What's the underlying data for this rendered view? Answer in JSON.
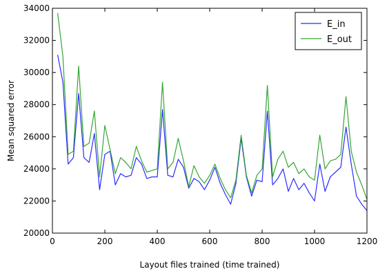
{
  "chart_data": {
    "type": "line",
    "title": "",
    "xlabel": "Layout files trained (time trained)",
    "ylabel": "Mean squared error",
    "xlim": [
      0,
      1200
    ],
    "ylim": [
      20000,
      34000
    ],
    "xticks": [
      0,
      200,
      400,
      600,
      800,
      1000,
      1200
    ],
    "yticks": [
      20000,
      22000,
      24000,
      26000,
      28000,
      30000,
      32000,
      34000
    ],
    "grid": false,
    "legend_position": "top-right",
    "x": [
      20,
      40,
      60,
      80,
      100,
      120,
      140,
      160,
      180,
      200,
      220,
      240,
      260,
      280,
      300,
      320,
      340,
      360,
      380,
      400,
      420,
      440,
      460,
      480,
      500,
      520,
      540,
      560,
      580,
      600,
      620,
      640,
      660,
      680,
      700,
      720,
      740,
      760,
      780,
      800,
      820,
      840,
      860,
      880,
      900,
      920,
      940,
      960,
      980,
      1000,
      1020,
      1040,
      1060,
      1080,
      1100,
      1120,
      1140,
      1160,
      1180,
      1200
    ],
    "series": [
      {
        "name": "E_in",
        "color": "#2a2aff",
        "values": [
          31100,
          29400,
          24300,
          24700,
          28700,
          24700,
          24400,
          26200,
          22700,
          24900,
          25100,
          23000,
          23700,
          23500,
          23600,
          24700,
          24300,
          23400,
          23500,
          23500,
          27700,
          23600,
          23500,
          24600,
          24100,
          22800,
          23400,
          23200,
          22700,
          23300,
          24100,
          23100,
          22400,
          21800,
          23100,
          25900,
          23500,
          22300,
          23300,
          23200,
          27600,
          23000,
          23400,
          24000,
          22600,
          23400,
          22700,
          23100,
          22500,
          22000,
          24300,
          22600,
          23500,
          23800,
          24100,
          26600,
          24300,
          22300,
          21800,
          21400
        ]
      },
      {
        "name": "E_out",
        "color": "#32a532",
        "values": [
          33700,
          31000,
          24900,
          25100,
          30400,
          25400,
          25600,
          27600,
          23500,
          26700,
          25200,
          23700,
          24700,
          24400,
          24000,
          25400,
          24500,
          23800,
          23900,
          24000,
          29400,
          24000,
          24400,
          25900,
          24500,
          22900,
          24200,
          23500,
          23100,
          23600,
          24300,
          23400,
          22700,
          22200,
          23300,
          26100,
          23600,
          22500,
          23600,
          24000,
          29200,
          23500,
          24600,
          25100,
          24100,
          24400,
          23700,
          24000,
          23500,
          23300,
          26100,
          24000,
          24500,
          24600,
          24900,
          28500,
          25100,
          23800,
          23000,
          22100
        ]
      }
    ]
  }
}
